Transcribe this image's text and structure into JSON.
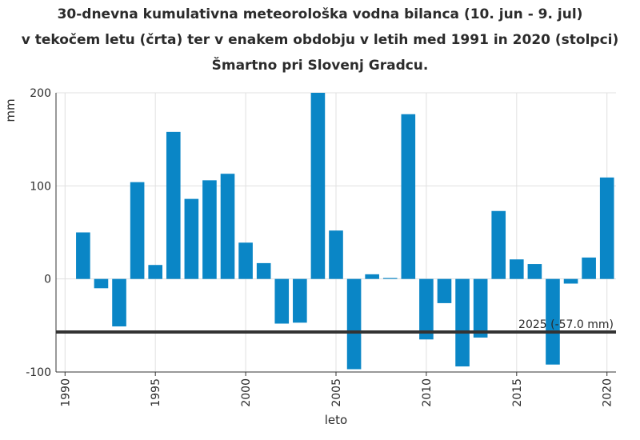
{
  "chart_data": {
    "type": "bar",
    "title_lines": [
      "30-dnevna kumulativna meteorološka vodna bilanca (10. jun - 9. jul)",
      "v tekočem letu (črta) ter v enakem obdobju v letih med 1991 in 2020 (stolpci)",
      "Šmartno pri Slovenj Gradcu."
    ],
    "xlabel": "leto",
    "ylabel": "mm",
    "ylim": [
      -100,
      200
    ],
    "xlim": [
      1989.5,
      2020.5
    ],
    "yticks": [
      -100,
      0,
      100,
      200
    ],
    "xticks": [
      1990,
      1995,
      2000,
      2005,
      2010,
      2015,
      2020
    ],
    "grid": true,
    "bar_color": "#0a86c6",
    "x": [
      1991,
      1992,
      1993,
      1994,
      1995,
      1996,
      1997,
      1998,
      1999,
      2000,
      2001,
      2002,
      2003,
      2004,
      2005,
      2006,
      2007,
      2008,
      2009,
      2010,
      2011,
      2012,
      2013,
      2014,
      2015,
      2016,
      2017,
      2018,
      2019,
      2020
    ],
    "values": [
      50,
      -10,
      -51,
      104,
      15,
      158,
      86,
      106,
      113,
      39,
      17,
      -48,
      -47,
      200,
      52,
      -97,
      5,
      1,
      177,
      -65,
      -26,
      -94,
      -63,
      73,
      21,
      16,
      -92,
      -5,
      23,
      109
    ],
    "reference_line": {
      "value": -57.0,
      "label": "2025 (-57.0 mm)",
      "color": "#333333"
    }
  }
}
